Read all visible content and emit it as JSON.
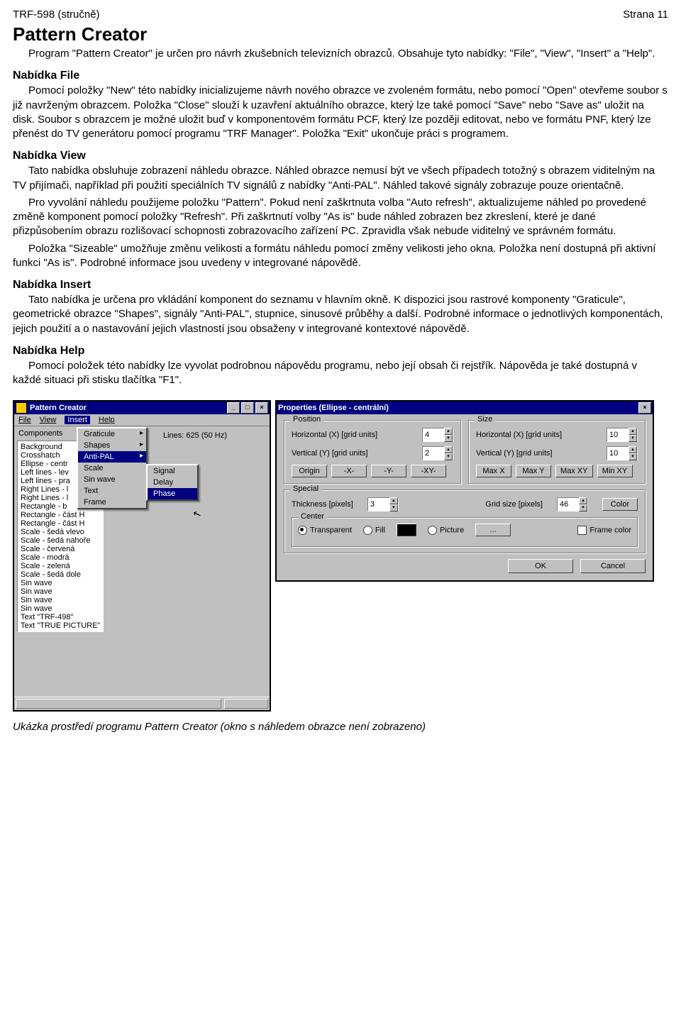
{
  "header": {
    "left": "TRF-598 (stručně)",
    "right": "Strana 11"
  },
  "title": "Pattern Creator",
  "intro": "Program \"Pattern Creator\" je určen pro návrh zkušebních televizních obrazců. Obsahuje tyto nabídky: \"File\", \"View\", \"Insert\" a \"Help\".",
  "sec_file": {
    "h": "Nabídka File",
    "p": "Pomocí položky \"New\" této nabídky inicializujeme návrh nového obrazce ve zvoleném formátu, nebo pomocí \"Open\" otevřeme soubor s již navrženým obrazcem. Položka \"Close\" slouží k uzavření aktuálního obrazce, který lze také pomocí \"Save\" nebo \"Save as\" uložit na disk. Soubor s obrazcem je možné uložit buď v komponentovém formátu PCF, který lze později editovat, nebo ve formátu PNF, který lze přenést do TV generátoru pomocí programu \"TRF Manager\". Položka \"Exit\" ukončuje práci s programem."
  },
  "sec_view": {
    "h": "Nabídka View",
    "p1": "Tato nabídka obsluhuje zobrazení náhledu obrazce. Náhled obrazce nemusí být ve všech případech totožný s obrazem viditelným na TV přijímači, například při použití speciálních TV signálů z nabídky \"Anti-PAL\". Náhled takové signály zobrazuje pouze orientačně.",
    "p2": "Pro vyvolání náhledu použijeme položku \"Pattern\". Pokud není zaškrtnuta volba \"Auto refresh\", aktualizujeme náhled po provedené změně komponent pomocí položky \"Refresh\". Při zaškrtnutí volby \"As is\" bude náhled zobrazen bez zkreslení, které je dané přizpůsobením obrazu rozlišovací schopnosti zobrazovacího zařízení PC. Zpravidla však nebude viditelný ve správném formátu.",
    "p3": "Položka \"Sizeable\" umožňuje změnu velikosti a formátu náhledu pomocí změny velikosti jeho okna. Položka není dostupná při aktivní funkci \"As is\". Podrobné informace jsou uvedeny v integrované nápovědě."
  },
  "sec_insert": {
    "h": "Nabídka Insert",
    "p": "Tato nabídka je určena pro vkládání komponent do seznamu v hlavním okně. K dispozici jsou rastrové komponenty \"Graticule\", geometrické obrazce \"Shapes\", signály \"Anti-PAL\", stupnice, sinusové průběhy a další. Podrobné informace o jednotlivých komponentách, jejich použití a o nastavování jejich vlastností jsou obsaženy v integrované kontextové nápovědě."
  },
  "sec_help": {
    "h": "Nabídka Help",
    "p": "Pomocí položek této nabídky lze vyvolat podrobnou nápovědu programu, nebo její obsah či rejstřík. Nápověda je také dostupná v každé situaci při stisku tlačítka \"F1\"."
  },
  "caption": "Ukázka prostředí programu Pattern Creator (okno s náhledem obrazce není zobrazeno)",
  "pc": {
    "title": "Pattern Creator",
    "menus": {
      "file": "File",
      "view": "View",
      "insert": "Insert",
      "help": "Help"
    },
    "lines": "Lines: 625 (50 Hz)",
    "components_label": "Components",
    "components": [
      "Background",
      "Crosshatch",
      "Ellipse - centr",
      "Left lines - lev",
      "Left lines - pra",
      "Right Lines - l",
      "Right Lines - l",
      "Rectangle - b",
      "Rectangle - část H",
      "Rectangle - část H",
      "Scale - šedá vlevo",
      "Scale - šedá nahoře",
      "Scale - červená",
      "Scale - modrá",
      "Scale - zelená",
      "Scale - šedá dole",
      "Sin wave",
      "Sin wave",
      "Sin wave",
      "Sin wave",
      "Text \"TRF-498\"",
      "Text \"TRUE PICTURE\""
    ],
    "insert_menu": [
      "Graticule",
      "Shapes",
      "Anti-PAL",
      "Scale",
      "Sin wave",
      "Text",
      "Frame"
    ],
    "insert_menu_arrows": [
      true,
      true,
      true,
      false,
      false,
      false,
      false
    ],
    "insert_sel_index": 2,
    "anti_menu": [
      "Signal",
      "Delay",
      "Phase"
    ],
    "anti_sel_index": 2
  },
  "prop": {
    "title": "Properties (Ellipse - centrální)",
    "position": {
      "label": "Position",
      "hx_label": "Horizontal (X)   [grid units]",
      "hx": "4",
      "vy_label": "Vertical (Y)   [grid units]",
      "vy": "2",
      "buttons": [
        "Origin",
        "-X-",
        "-Y-",
        "-XY-"
      ]
    },
    "size": {
      "label": "Size",
      "hx_label": "Horizontal (X)   [grid units]",
      "hx": "10",
      "vy_label": "Vertical (Y)   [grid units]",
      "vy": "10",
      "buttons": [
        "Max X",
        "Max Y",
        "Max XY",
        "Min XY"
      ]
    },
    "special": {
      "label": "Special",
      "thickness_label": "Thickness   [pixels]",
      "thickness": "3",
      "grid_label": "Grid size   [pixels]",
      "grid": "46",
      "color_btn": "Color"
    },
    "center": {
      "label": "Center",
      "transparent": "Transparent",
      "fill": "Fill",
      "picture": "Picture",
      "dots": "...",
      "frame": "Frame color"
    },
    "ok": "OK",
    "cancel": "Cancel"
  }
}
